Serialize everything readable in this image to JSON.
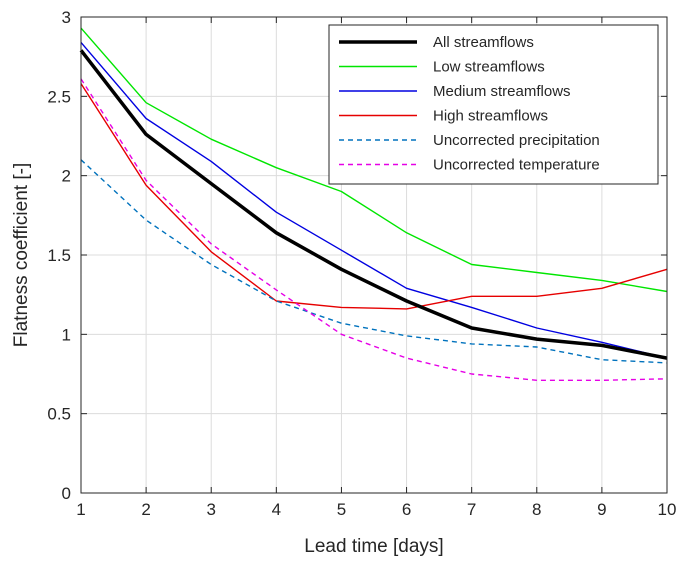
{
  "chart_data": {
    "type": "line",
    "xlabel": "Lead time [days]",
    "ylabel": "Flatness coefficient [-]",
    "xlim": [
      1,
      10
    ],
    "ylim": [
      0,
      3
    ],
    "xticks": [
      1,
      2,
      3,
      4,
      5,
      6,
      7,
      8,
      9,
      10
    ],
    "yticks": [
      0,
      0.5,
      1,
      1.5,
      2,
      2.5,
      3
    ],
    "ytick_labels": [
      "0",
      "0.5",
      "1",
      "1.5",
      "2",
      "2.5",
      "3"
    ],
    "grid": true,
    "legend_position": "top-right",
    "x": [
      1,
      2,
      3,
      4,
      5,
      6,
      7,
      8,
      9,
      10
    ],
    "series": [
      {
        "name": "All streamflows",
        "color": "#000000",
        "dash": "solid",
        "width": "thick",
        "values": [
          2.79,
          2.26,
          1.95,
          1.64,
          1.41,
          1.21,
          1.04,
          0.97,
          0.93,
          0.85
        ]
      },
      {
        "name": "Low streamflows",
        "color": "#00e600",
        "dash": "solid",
        "width": "thin",
        "values": [
          2.93,
          2.46,
          2.23,
          2.05,
          1.9,
          1.64,
          1.44,
          1.39,
          1.34,
          1.27
        ]
      },
      {
        "name": "Medium streamflows",
        "color": "#0000e0",
        "dash": "solid",
        "width": "thin",
        "values": [
          2.84,
          2.36,
          2.09,
          1.77,
          1.53,
          1.29,
          1.17,
          1.04,
          0.95,
          0.85
        ]
      },
      {
        "name": "High streamflows",
        "color": "#e60000",
        "dash": "solid",
        "width": "thin",
        "values": [
          2.58,
          1.94,
          1.52,
          1.21,
          1.17,
          1.16,
          1.24,
          1.24,
          1.29,
          1.41
        ]
      },
      {
        "name": "Uncorrected precipitation",
        "color": "#0072bd",
        "dash": "dashed",
        "width": "thin",
        "values": [
          2.1,
          1.72,
          1.44,
          1.21,
          1.07,
          0.99,
          0.94,
          0.92,
          0.84,
          0.82
        ]
      },
      {
        "name": "Uncorrected temperature",
        "color": "#e600e6",
        "dash": "dashed",
        "width": "thin",
        "values": [
          2.61,
          1.97,
          1.57,
          1.28,
          1.0,
          0.85,
          0.75,
          0.71,
          0.71,
          0.72
        ]
      }
    ]
  }
}
